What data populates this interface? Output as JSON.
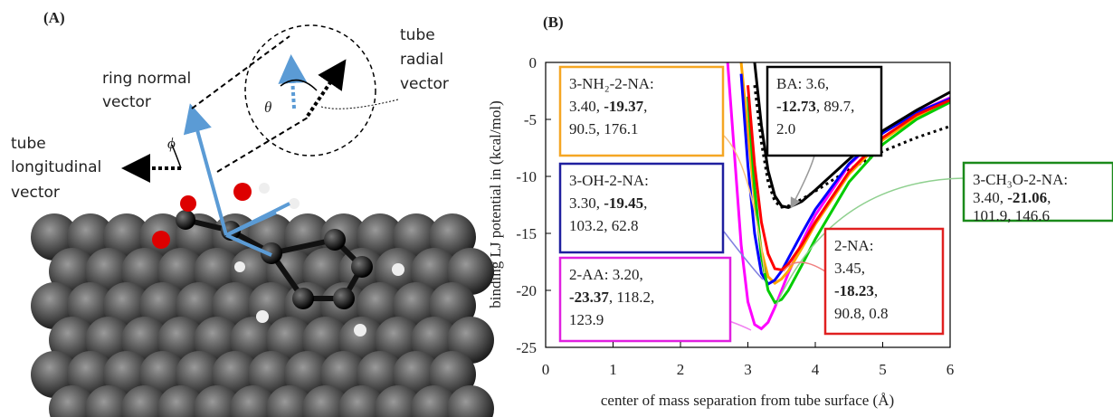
{
  "panel_a": {
    "label": "(A)",
    "ring_normal": [
      "ring normal",
      "vector"
    ],
    "longitudinal": [
      "tube",
      "longitudinal",
      "vector"
    ],
    "radial": [
      "tube",
      "radial",
      "vector"
    ],
    "theta": "θ",
    "phi": "ϕ"
  },
  "chart_data": {
    "type": "line",
    "panel_label": "(B)",
    "x_label": "center of mass separation from tube surface (Å)",
    "y_label": "binding LJ potential in (kcal/mol)",
    "xlim": [
      0,
      6
    ],
    "xticks": [
      0,
      1,
      2,
      3,
      4,
      5,
      6
    ],
    "ylim": [
      -25,
      0
    ],
    "yticks": [
      0,
      -5,
      -10,
      -15,
      -20,
      -25
    ],
    "x": [
      2.7,
      2.8,
      2.9,
      3.0,
      3.1,
      3.2,
      3.3,
      3.4,
      3.5,
      3.6,
      3.8,
      4.0,
      4.5,
      5.0,
      5.5,
      6.0
    ],
    "series": [
      {
        "color": "#000000",
        "style": "dotted",
        "values": [
          null,
          null,
          null,
          null,
          -2,
          -7,
          -10.5,
          -12.2,
          -12.7,
          -12.6,
          -12.0,
          -11.3,
          -9.4,
          -7.8,
          -6.6,
          -5.6
        ]
      },
      {
        "color": "#ff00ff",
        "style": "solid",
        "values": [
          0,
          -8,
          -16,
          -21,
          -23,
          -23.37,
          -22.8,
          -21.5,
          -20,
          -18.5,
          -15.8,
          -13.4,
          -9.0,
          -6.2,
          -4.4,
          -3.1
        ]
      },
      {
        "color": "#ffa500",
        "style": "solid",
        "values": [
          null,
          null,
          0,
          -6,
          -12,
          -16.5,
          -18.8,
          -19.37,
          -19.0,
          -18.3,
          -16.3,
          -14.2,
          -9.8,
          -6.8,
          -4.8,
          -3.4
        ]
      },
      {
        "color": "#0000ff",
        "style": "solid",
        "values": [
          null,
          null,
          -1,
          -9,
          -15,
          -18.5,
          -19.45,
          -19.1,
          -18.3,
          -17.2,
          -15.0,
          -12.9,
          -8.9,
          -6.2,
          -4.4,
          -3.2
        ]
      },
      {
        "color": "#00cc00",
        "style": "solid",
        "values": [
          null,
          null,
          null,
          -3,
          -11,
          -17,
          -20,
          -21.06,
          -20.8,
          -20.0,
          -17.8,
          -15.5,
          -10.5,
          -7.2,
          -5.0,
          -3.5
        ]
      },
      {
        "color": "#ff0000",
        "style": "solid",
        "values": [
          null,
          null,
          null,
          -2,
          -9,
          -14,
          -16.8,
          -18.1,
          -18.2,
          -17.7,
          -16.0,
          -14.0,
          -9.6,
          -6.6,
          -4.6,
          -3.3
        ]
      },
      {
        "color": "#000000",
        "style": "solid",
        "values": [
          null,
          null,
          null,
          null,
          0,
          -5.5,
          -9.5,
          -11.7,
          -12.6,
          -12.73,
          -12.2,
          -11.2,
          -8.5,
          -6.0,
          -4.2,
          -2.6
        ]
      }
    ],
    "annotations": [
      {
        "color": "#f5a623",
        "lines": [
          [
            {
              "text": "3-NH₂-2-NA:"
            }
          ],
          [
            {
              "text": "3.40, "
            },
            {
              "text": "-19.37",
              "bold": true
            },
            {
              "text": ","
            }
          ],
          [
            {
              "text": "90.5, 176.1"
            }
          ]
        ]
      },
      {
        "color": "#000000",
        "lines": [
          [
            {
              "text": "BA: 3.6,"
            }
          ],
          [
            {
              "text": "-12.73",
              "bold": true
            },
            {
              "text": ", 89.7,"
            }
          ],
          [
            {
              "text": "2.0"
            }
          ]
        ]
      },
      {
        "color": "#1f1f9f",
        "lines": [
          [
            {
              "text": "3-OH-2-NA:"
            }
          ],
          [
            {
              "text": "3.30, "
            },
            {
              "text": "-19.45",
              "bold": true
            },
            {
              "text": ","
            }
          ],
          [
            {
              "text": "103.2, 62.8"
            }
          ]
        ]
      },
      {
        "color": "#e020e0",
        "lines": [
          [
            {
              "text": "2-AA: 3.20,"
            }
          ],
          [
            {
              "text": "-23.37",
              "bold": true
            },
            {
              "text": ", 118.2,"
            }
          ],
          [
            {
              "text": "123.9"
            }
          ]
        ]
      },
      {
        "color": "#1a8a1a",
        "lines": [
          [
            {
              "text": "3-CH₃O-2-NA:"
            }
          ],
          [
            {
              "text": "3.40, "
            },
            {
              "text": "-21.06",
              "bold": true
            },
            {
              "text": ","
            }
          ],
          [
            {
              "text": "101.9, 146.6"
            }
          ]
        ]
      },
      {
        "color": "#e02020",
        "lines": [
          [
            {
              "text": "2-NA:"
            }
          ],
          [
            {
              "text": "3.45,"
            }
          ],
          [
            {
              "text": "-18.23",
              "bold": true
            },
            {
              "text": ","
            }
          ],
          [
            {
              "text": "90.8, 0.8"
            }
          ]
        ]
      }
    ]
  }
}
